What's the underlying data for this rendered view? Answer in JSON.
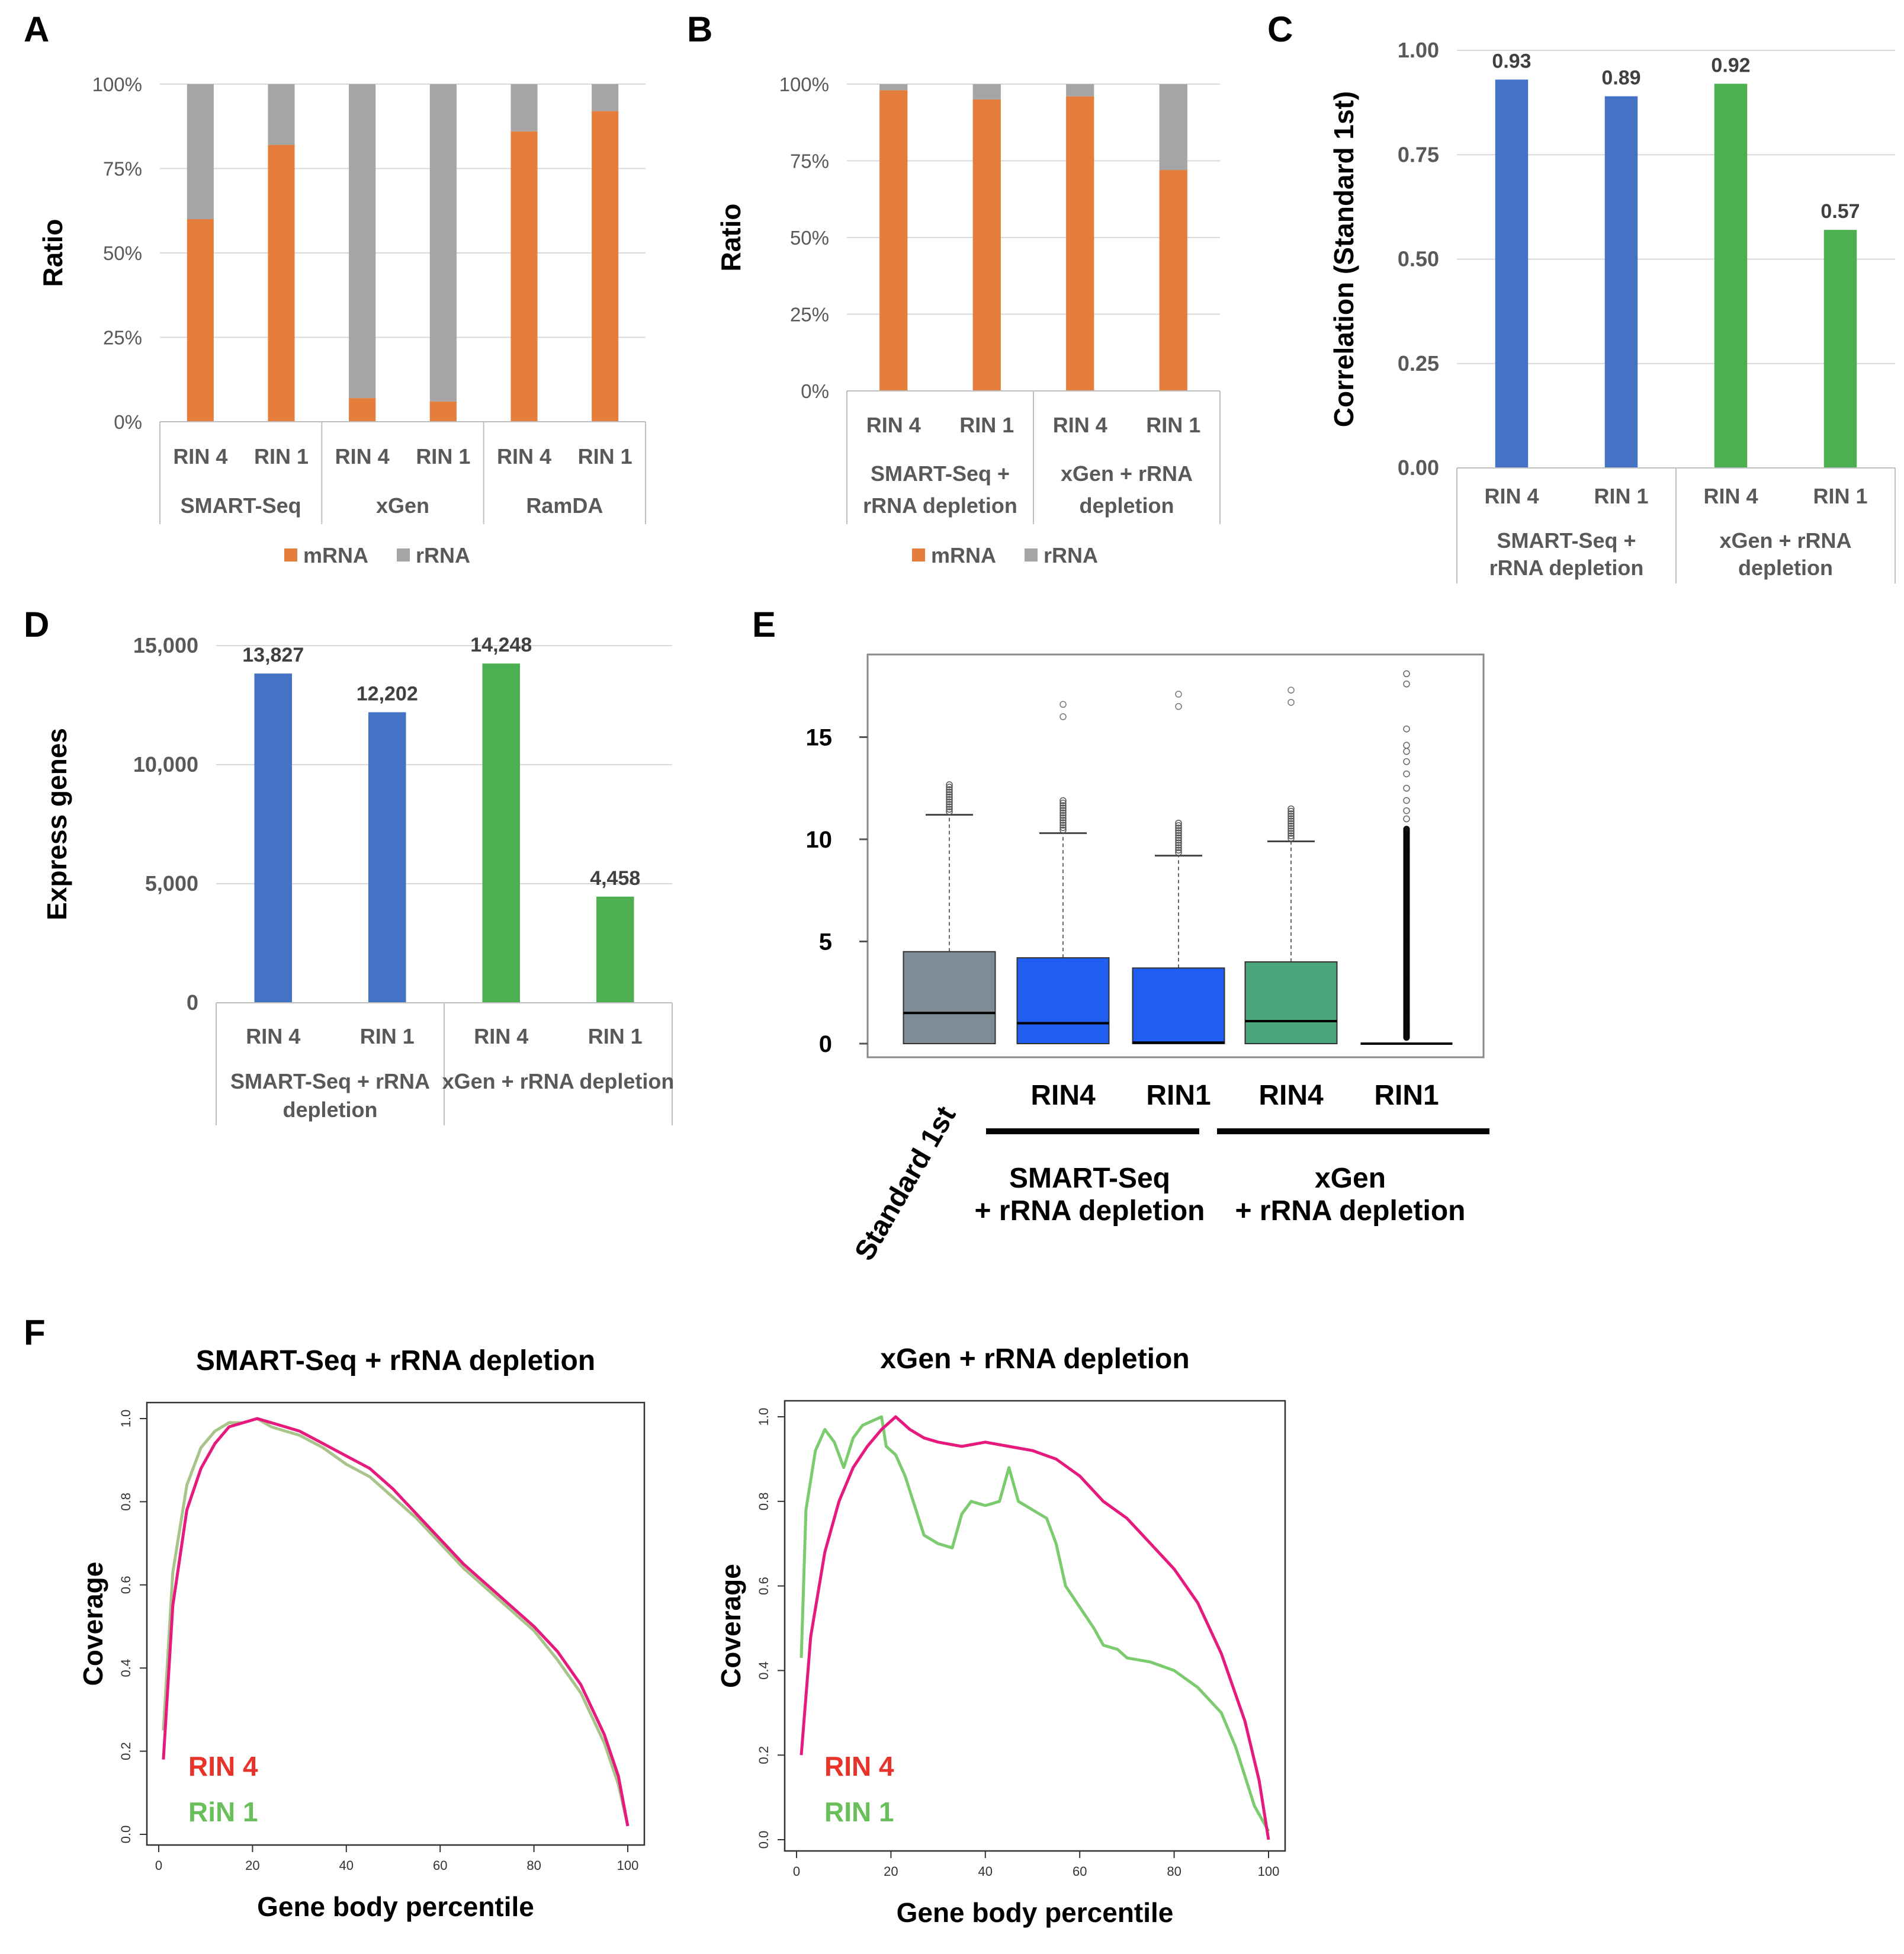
{
  "chart_data": [
    {
      "panel": "A",
      "type": "bar",
      "stacked": true,
      "ylabel": "Ratio",
      "y_ticks": [
        "0%",
        "25%",
        "50%",
        "75%",
        "100%"
      ],
      "categories": [
        "RIN 4",
        "RIN 1",
        "RIN 4",
        "RIN 1",
        "RIN 4",
        "RIN 1"
      ],
      "groups": [
        "SMART-Seq",
        "xGen",
        "RamDA"
      ],
      "series": [
        {
          "name": "mRNA",
          "color": "#E57E3D",
          "values": [
            60,
            82,
            7,
            6,
            86,
            92
          ]
        },
        {
          "name": "rRNA",
          "color": "#A5A5A5",
          "values": [
            40,
            18,
            93,
            94,
            14,
            8
          ]
        }
      ],
      "legend": [
        "mRNA",
        "rRNA"
      ]
    },
    {
      "panel": "B",
      "type": "bar",
      "stacked": true,
      "ylabel": "Ratio",
      "y_ticks": [
        "0%",
        "25%",
        "50%",
        "75%",
        "100%"
      ],
      "categories": [
        "RIN 4",
        "RIN 1",
        "RIN 4",
        "RIN 1"
      ],
      "groups": [
        [
          "SMART-Seq +",
          "rRNA depletion"
        ],
        [
          "xGen + rRNA",
          "depletion"
        ]
      ],
      "series": [
        {
          "name": "mRNA",
          "color": "#E57E3D",
          "values": [
            98,
            95,
            96,
            72
          ]
        },
        {
          "name": "rRNA",
          "color": "#A5A5A5",
          "values": [
            2,
            5,
            4,
            28
          ]
        }
      ],
      "legend": [
        "mRNA",
        "rRNA"
      ]
    },
    {
      "panel": "C",
      "type": "bar",
      "ylabel": "Correlation (Standard 1st)",
      "y_ticks": [
        "0.00",
        "0.25",
        "0.50",
        "0.75",
        "1.00"
      ],
      "categories": [
        "RIN 4",
        "RIN 1",
        "RIN 4",
        "RIN 1"
      ],
      "groups": [
        [
          "SMART-Seq +",
          "rRNA depletion"
        ],
        [
          "xGen + rRNA",
          "depletion"
        ]
      ],
      "values": [
        0.93,
        0.89,
        0.92,
        0.57
      ],
      "labels": [
        "0.93",
        "0.89",
        "0.92",
        "0.57"
      ],
      "colors": [
        "#4472C4",
        "#4472C4",
        "#4CAF50",
        "#4CAF50"
      ]
    },
    {
      "panel": "D",
      "type": "bar",
      "ylabel": "Express genes",
      "y_ticks": [
        "0",
        "5,000",
        "10,000",
        "15,000"
      ],
      "categories": [
        "RIN 4",
        "RIN 1",
        "RIN 4",
        "RIN 1"
      ],
      "groups": [
        [
          "SMART-Seq + rRNA",
          "depletion"
        ],
        [
          "xGen + rRNA depletion"
        ]
      ],
      "values": [
        13827,
        12202,
        14248,
        4458
      ],
      "labels": [
        "13,827",
        "12,202",
        "14,248",
        "4,458"
      ],
      "colors": [
        "#4472C4",
        "#4472C4",
        "#4CAF50",
        "#4CAF50"
      ]
    },
    {
      "panel": "E",
      "type": "box",
      "y_ticks": [
        "0",
        "5",
        "10",
        "15"
      ],
      "categories": [
        "Standard 1st",
        "RIN4",
        "RIN1",
        "RIN4",
        "RIN1"
      ],
      "groups": [
        [
          "SMART-Seq",
          "+ rRNA depletion"
        ],
        [
          "xGen",
          "+ rRNA depletion"
        ]
      ],
      "boxes": [
        {
          "q1": 0,
          "median": 1.5,
          "q3": 4.5,
          "whisker_high": 11.2,
          "outlier_max": 12.7,
          "color": "#7F8C95"
        },
        {
          "q1": 0,
          "median": 1.0,
          "q3": 4.2,
          "whisker_high": 10.3,
          "outlier_max": 16.6,
          "color": "#1F5EF0"
        },
        {
          "q1": 0,
          "median": 0.05,
          "q3": 3.7,
          "whisker_high": 9.2,
          "outlier_max": 17.1,
          "color": "#1F5EF0"
        },
        {
          "q1": 0,
          "median": 1.1,
          "q3": 4.0,
          "whisker_high": 9.9,
          "outlier_max": 17.3,
          "color": "#4BA67B"
        },
        {
          "q1": 0,
          "median": 0,
          "q3": 0,
          "whisker_high": 0,
          "outlier_max": 18.1,
          "color": "#000000"
        }
      ]
    },
    {
      "panel": "F",
      "type": "line",
      "title": "SMART-Seq + rRNA depletion",
      "xlabel": "Gene body percentile",
      "ylabel": "Coverage",
      "x_ticks": [
        "0",
        "20",
        "40",
        "60",
        "80",
        "100"
      ],
      "y_ticks": [
        "0.0",
        "0.2",
        "0.4",
        "0.6",
        "0.8",
        "1.0"
      ],
      "xlim": [
        0,
        100
      ],
      "ylim": [
        0,
        1
      ],
      "series": [
        {
          "name": "RIN 4",
          "color": "#E6197D",
          "x": [
            1,
            3,
            6,
            9,
            12,
            15,
            18,
            21,
            24,
            27,
            30,
            35,
            40,
            45,
            50,
            55,
            60,
            65,
            70,
            75,
            80,
            85,
            90,
            95,
            98,
            100
          ],
          "y": [
            0.18,
            0.55,
            0.78,
            0.88,
            0.94,
            0.98,
            0.99,
            1.0,
            0.99,
            0.98,
            0.97,
            0.94,
            0.91,
            0.88,
            0.83,
            0.77,
            0.71,
            0.65,
            0.6,
            0.55,
            0.5,
            0.44,
            0.36,
            0.24,
            0.14,
            0.02
          ]
        },
        {
          "name": "RiN 1",
          "color": "#A8C48A",
          "x": [
            1,
            3,
            6,
            9,
            12,
            15,
            18,
            21,
            24,
            27,
            30,
            35,
            40,
            45,
            50,
            55,
            60,
            65,
            70,
            75,
            80,
            85,
            90,
            95,
            98,
            100
          ],
          "y": [
            0.25,
            0.63,
            0.84,
            0.93,
            0.97,
            0.99,
            0.99,
            1.0,
            0.98,
            0.97,
            0.96,
            0.93,
            0.89,
            0.86,
            0.81,
            0.76,
            0.7,
            0.64,
            0.59,
            0.54,
            0.49,
            0.42,
            0.34,
            0.22,
            0.12,
            0.02
          ]
        }
      ],
      "legend": [
        "RIN 4",
        "RiN 1"
      ]
    },
    {
      "panel": "F",
      "type": "line",
      "title": "xGen + rRNA depletion",
      "xlabel": "Gene body percentile",
      "ylabel": "Coverage",
      "x_ticks": [
        "0",
        "20",
        "40",
        "60",
        "80",
        "100"
      ],
      "y_ticks": [
        "0.0",
        "0.2",
        "0.4",
        "0.6",
        "0.8",
        "1.0"
      ],
      "xlim": [
        0,
        100
      ],
      "ylim": [
        0,
        1
      ],
      "series": [
        {
          "name": "RIN 4",
          "color": "#E6197D",
          "x": [
            1,
            3,
            6,
            9,
            12,
            15,
            18,
            21,
            24,
            27,
            30,
            35,
            40,
            45,
            50,
            55,
            60,
            65,
            70,
            75,
            80,
            85,
            90,
            95,
            98,
            100
          ],
          "y": [
            0.2,
            0.48,
            0.68,
            0.8,
            0.88,
            0.93,
            0.97,
            1.0,
            0.97,
            0.95,
            0.94,
            0.93,
            0.94,
            0.93,
            0.92,
            0.9,
            0.86,
            0.8,
            0.76,
            0.7,
            0.64,
            0.56,
            0.44,
            0.28,
            0.14,
            0.0
          ]
        },
        {
          "name": "RIN 1",
          "color": "#7CCB6E",
          "x": [
            1,
            2,
            4,
            6,
            8,
            10,
            12,
            14,
            16,
            18,
            19,
            21,
            23,
            25,
            27,
            30,
            33,
            35,
            37,
            40,
            43,
            45,
            47,
            50,
            53,
            55,
            57,
            60,
            63,
            65,
            68,
            70,
            75,
            80,
            85,
            90,
            93,
            95,
            97,
            100
          ],
          "y": [
            0.43,
            0.78,
            0.92,
            0.97,
            0.94,
            0.88,
            0.95,
            0.98,
            0.99,
            1.0,
            0.93,
            0.91,
            0.86,
            0.79,
            0.72,
            0.7,
            0.69,
            0.77,
            0.8,
            0.79,
            0.8,
            0.88,
            0.8,
            0.78,
            0.76,
            0.7,
            0.6,
            0.55,
            0.5,
            0.46,
            0.45,
            0.43,
            0.42,
            0.4,
            0.36,
            0.3,
            0.22,
            0.15,
            0.08,
            0.02
          ]
        }
      ],
      "legend": [
        "RIN 4",
        "RIN 1"
      ]
    }
  ]
}
